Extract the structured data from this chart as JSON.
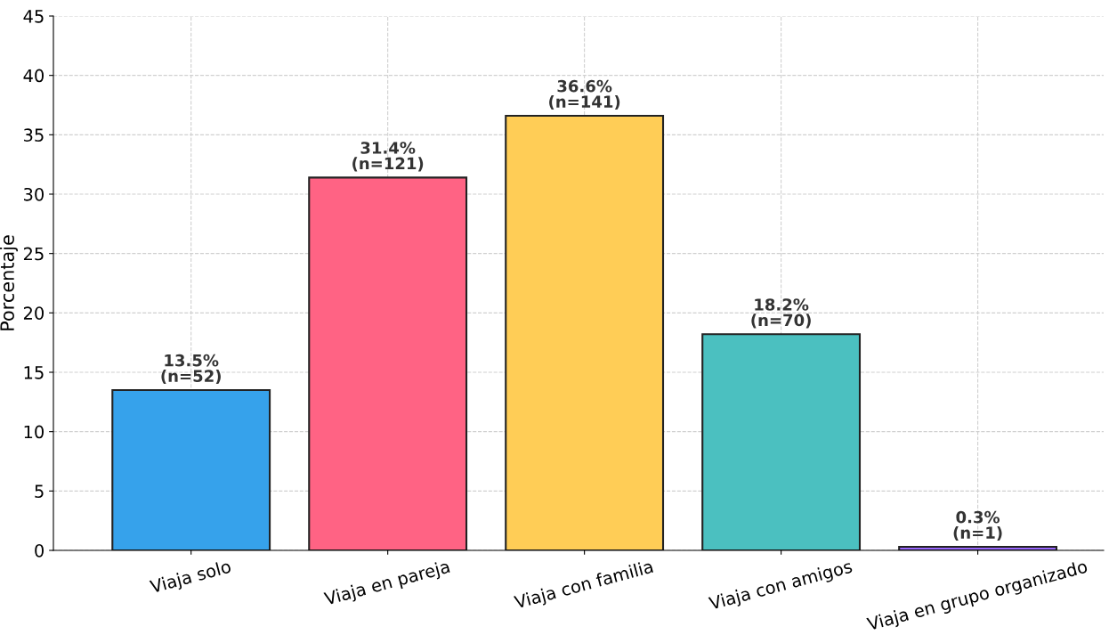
{
  "chart_data": {
    "type": "bar",
    "ylabel": "Porcentaje",
    "categories": [
      "Viaja solo",
      "Viaja en pareja",
      "Viaja con familia",
      "Viaja con amigos",
      "Viaja en grupo organizado"
    ],
    "values": [
      13.5,
      31.4,
      36.6,
      18.2,
      0.3
    ],
    "colors": [
      "#36a2eb",
      "#ff6384",
      "#ffcd56",
      "#4bc0c0",
      "#9966ff"
    ],
    "value_labels": [
      "13.5%\n(n=52)",
      "31.4%\n(n=121)",
      "36.6%\n(n=141)",
      "18.2%\n(n=70)",
      "0.3%\n(n=1)"
    ],
    "ylim": [
      0,
      45
    ],
    "yticks": [
      0,
      5,
      10,
      15,
      20,
      25,
      30,
      35,
      40,
      45
    ],
    "grid": true
  }
}
